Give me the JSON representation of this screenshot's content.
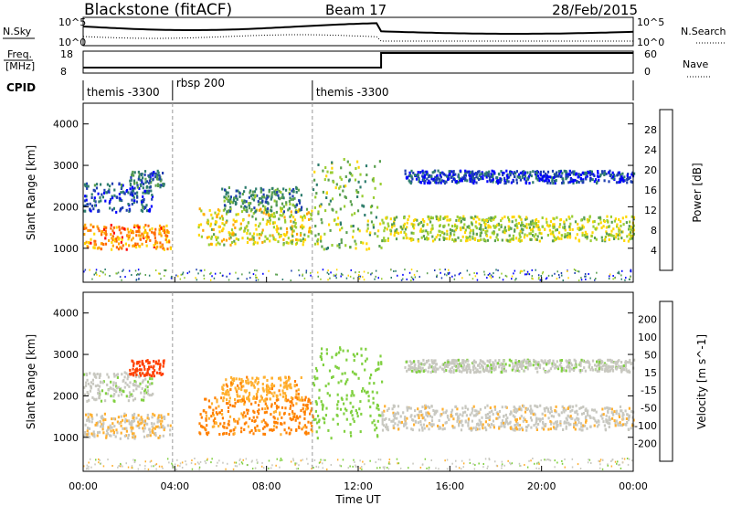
{
  "header": {
    "station": "Blackstone (fitACF)",
    "beam": "Beam 17",
    "date": "28/Feb/2015"
  },
  "labels": {
    "nsky": "N.Sky",
    "nsearch": "N.Search",
    "freq_line1": "Freq.",
    "freq_line2": "[MHz]",
    "nave": "Nave",
    "cpid": "CPID",
    "nsky_ticks": [
      "10^5",
      "10^0"
    ],
    "freq_ticks": [
      "18",
      "8"
    ],
    "nave_ticks": [
      "60",
      "0"
    ]
  },
  "cpid_segments": [
    {
      "label": "themis -3300",
      "start_hour": 0,
      "end_hour": 3.9
    },
    {
      "label": "rbsp 200",
      "start_hour": 3.9,
      "end_hour": 10.0
    },
    {
      "label": "themis -3300",
      "start_hour": 10.0,
      "end_hour": 24
    }
  ],
  "x_axis": {
    "label": "Time UT",
    "ticks": [
      "00:00",
      "04:00",
      "08:00",
      "12:00",
      "16:00",
      "20:00",
      "00:00"
    ],
    "range_hours": [
      0,
      24
    ]
  },
  "panels": [
    {
      "name": "power",
      "ylabel": "Slant Range [km]",
      "yticks": [
        "1000",
        "2000",
        "3000",
        "4000"
      ],
      "colorbar_label": "Power [dB]",
      "colorbar_ticks": [
        "4",
        "8",
        "12",
        "16",
        "20",
        "24",
        "28"
      ],
      "colors": [
        "#0000ff",
        "#1f3fb0",
        "#2e7d6e",
        "#5aa050",
        "#9acd32",
        "#ffd700",
        "#ffa500",
        "#ff6a00",
        "#ff0000"
      ]
    },
    {
      "name": "velocity",
      "ylabel": "Slant Range [km]",
      "yticks": [
        "1000",
        "2000",
        "3000",
        "4000"
      ],
      "colorbar_label": "Velocity [m s^-1]",
      "colorbar_ticks": [
        "200",
        "100",
        "50",
        "15",
        "-15",
        "-50",
        "-100",
        "-200"
      ],
      "colors": [
        "#1010d0",
        "#206080",
        "#30a030",
        "#80d040",
        "#c8c8c0",
        "#ffb030",
        "#ff8000",
        "#ff4000",
        "#ff0000"
      ]
    }
  ],
  "chart_data": {
    "type": "heatmap",
    "title": "Blackstone (fitACF) Beam 17 28/Feb/2015",
    "xlabel": "Time UT",
    "ylabel": "Slant Range [km]",
    "x_range_hours": [
      0,
      24
    ],
    "y_range_km": [
      180,
      4500
    ],
    "bands": [
      {
        "start_hour": 0.0,
        "end_hour": 3.8,
        "range_km": [
          1000,
          1600
        ],
        "power_db": 24,
        "velocity": -10
      },
      {
        "start_hour": 0.0,
        "end_hour": 3.0,
        "range_km": [
          1900,
          2600
        ],
        "power_db": 6,
        "velocity": 5
      },
      {
        "start_hour": 2.0,
        "end_hour": 3.5,
        "range_km": [
          2500,
          2900
        ],
        "power_db": 8,
        "velocity": -180
      },
      {
        "start_hour": 5.0,
        "end_hour": 10.0,
        "range_km": [
          1100,
          2000
        ],
        "power_db": 18,
        "velocity": -60
      },
      {
        "start_hour": 6.0,
        "end_hour": 9.5,
        "range_km": [
          1900,
          2500
        ],
        "power_db": 10,
        "velocity": -40
      },
      {
        "start_hour": 10.0,
        "end_hour": 13.0,
        "range_km": [
          1000,
          3200
        ],
        "power_db": 14,
        "velocity": 30
      },
      {
        "start_hour": 13.0,
        "end_hour": 24.0,
        "range_km": [
          1200,
          1800
        ],
        "power_db": 16,
        "velocity": -5
      },
      {
        "start_hour": 14.0,
        "end_hour": 24.0,
        "range_km": [
          2600,
          2900
        ],
        "power_db": 5,
        "velocity": 5
      }
    ]
  }
}
